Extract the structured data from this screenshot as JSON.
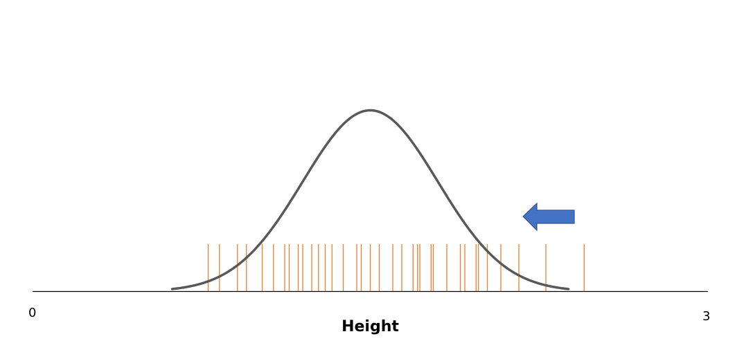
{
  "diagram": {
    "axis": {
      "min_label": "0",
      "max_label": "3",
      "title": "Height"
    },
    "observations": [
      0.78,
      0.83,
      0.91,
      0.95,
      1.02,
      1.07,
      1.12,
      1.14,
      1.18,
      1.2,
      1.24,
      1.27,
      1.3,
      1.33,
      1.38,
      1.44,
      1.46,
      1.5,
      1.54,
      1.6,
      1.64,
      1.69,
      1.71,
      1.72,
      1.77,
      1.78,
      1.84,
      1.9,
      1.92,
      1.97,
      1.98,
      2.02,
      2.08,
      2.16,
      2.28,
      2.45
    ],
    "distribution": {
      "mean": 1.5,
      "sd": 0.3
    },
    "arrow": {
      "direction": "left",
      "color": "#4472c4"
    },
    "colors": {
      "curve": "#595959",
      "observation_lines": "#ed7d31",
      "axis_line": "#000000"
    }
  }
}
